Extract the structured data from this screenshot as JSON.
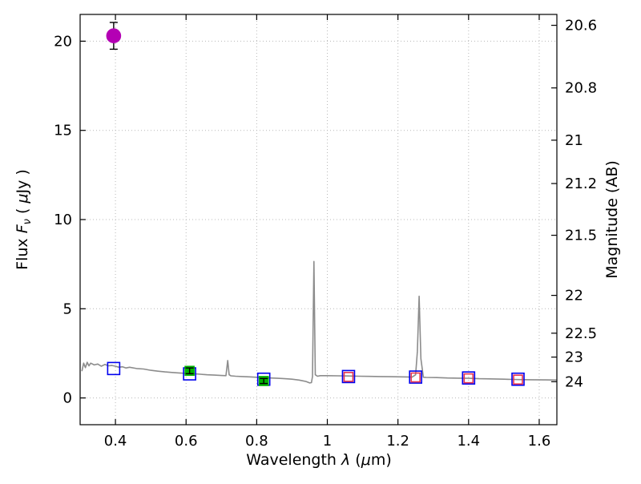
{
  "labels": {
    "x_prefix": "Wavelength  ",
    "x_lambda": "λ",
    "x_paren": " (",
    "x_mu": "μ",
    "x_suffix": "m)",
    "l_prefix": "Flux  ",
    "l_F": "F",
    "l_nu": "ν",
    "l_open": "  ( ",
    "l_mu": "μ",
    "l_end": "Jy )",
    "right_label": "Magnitude (AB)"
  },
  "chart_data": {
    "type": "line+scatter",
    "title": "",
    "xlabel": "Wavelength λ (μm)",
    "ylabel_left": "Flux Fν ( μJy )",
    "ylabel_right": "Magnitude (AB)",
    "grid": true,
    "grid_color": "#b8b8b8",
    "frame_color": "#000000",
    "xlim": [
      0.3,
      1.65
    ],
    "ylim": [
      -1.5,
      21.5
    ],
    "x_ticks": [
      0.4,
      0.6,
      0.8,
      1.0,
      1.2,
      1.4,
      1.6
    ],
    "x_tick_labels": [
      "0.4",
      "0.6",
      "0.8",
      "1",
      "1.2",
      "1.4",
      "1.6"
    ],
    "y_ticks": [
      0,
      5,
      10,
      15,
      20
    ],
    "y_tick_labels": [
      "0",
      "5",
      "10",
      "15",
      "20"
    ],
    "right_axis": {
      "label": "Magnitude (AB)",
      "ticks": [
        {
          "label": "20.6",
          "flux": 20.89
        },
        {
          "label": "20.8",
          "flux": 17.38
        },
        {
          "label": "21",
          "flux": 14.45
        },
        {
          "label": "21.2",
          "flux": 12.02
        },
        {
          "label": "21.5",
          "flux": 9.12
        },
        {
          "label": "22",
          "flux": 5.75
        },
        {
          "label": "22.5",
          "flux": 3.63
        },
        {
          "label": "23",
          "flux": 2.29
        },
        {
          "label": "24",
          "flux": 0.91
        }
      ]
    },
    "spectrum": {
      "name": "model-spectrum",
      "color": "#8c8c8c",
      "width": 1.6,
      "x": [
        0.305,
        0.31,
        0.315,
        0.32,
        0.325,
        0.33,
        0.34,
        0.35,
        0.36,
        0.37,
        0.38,
        0.39,
        0.4,
        0.41,
        0.42,
        0.43,
        0.44,
        0.46,
        0.48,
        0.5,
        0.52,
        0.54,
        0.56,
        0.58,
        0.6,
        0.62,
        0.64,
        0.66,
        0.68,
        0.7,
        0.713,
        0.718,
        0.722,
        0.727,
        0.74,
        0.76,
        0.78,
        0.8,
        0.82,
        0.84,
        0.86,
        0.88,
        0.9,
        0.92,
        0.94,
        0.95,
        0.955,
        0.958,
        0.962,
        0.966,
        0.972,
        0.98,
        1.0,
        1.03,
        1.06,
        1.09,
        1.12,
        1.15,
        1.18,
        1.21,
        1.24,
        1.25,
        1.255,
        1.26,
        1.265,
        1.272,
        1.28,
        1.31,
        1.34,
        1.37,
        1.4,
        1.43,
        1.46,
        1.5,
        1.54,
        1.58,
        1.62,
        1.65
      ],
      "y": [
        1.5,
        1.95,
        1.7,
        2.0,
        1.8,
        1.95,
        1.85,
        1.9,
        1.78,
        1.88,
        1.8,
        1.82,
        1.78,
        1.72,
        1.75,
        1.68,
        1.72,
        1.65,
        1.62,
        1.55,
        1.5,
        1.46,
        1.43,
        1.4,
        1.38,
        1.36,
        1.33,
        1.3,
        1.28,
        1.26,
        1.25,
        2.1,
        1.3,
        1.24,
        1.22,
        1.2,
        1.18,
        1.16,
        1.14,
        1.12,
        1.1,
        1.08,
        1.05,
        1.0,
        0.92,
        0.84,
        0.86,
        1.2,
        7.65,
        1.3,
        1.22,
        1.25,
        1.25,
        1.24,
        1.23,
        1.22,
        1.21,
        1.2,
        1.19,
        1.18,
        1.17,
        1.3,
        2.6,
        5.7,
        2.2,
        1.16,
        1.15,
        1.14,
        1.12,
        1.11,
        1.1,
        1.08,
        1.07,
        1.05,
        1.03,
        1.02,
        1.01,
        1.0
      ]
    },
    "series": [
      {
        "name": "blue-open-squares",
        "marker": "square",
        "filled": false,
        "color": "#0000ee",
        "size": 15,
        "points": [
          {
            "x": 0.395,
            "y": 1.65
          },
          {
            "x": 0.61,
            "y": 1.35
          },
          {
            "x": 0.82,
            "y": 1.05
          },
          {
            "x": 1.06,
            "y": 1.2
          },
          {
            "x": 1.25,
            "y": 1.17
          },
          {
            "x": 1.4,
            "y": 1.12
          },
          {
            "x": 1.54,
            "y": 1.05
          }
        ]
      },
      {
        "name": "red-open-squares",
        "marker": "square",
        "filled": false,
        "color": "#e8344e",
        "size": 11,
        "points": [
          {
            "x": 1.06,
            "y": 1.18
          },
          {
            "x": 1.25,
            "y": 1.15
          },
          {
            "x": 1.4,
            "y": 1.1
          },
          {
            "x": 1.54,
            "y": 1.03
          }
        ]
      },
      {
        "name": "green-filled-squares",
        "marker": "square",
        "filled": true,
        "color": "#00b300",
        "size": 11,
        "errorbar_color": "#000000",
        "errorbar_on_top": true,
        "points": [
          {
            "x": 0.61,
            "y": 1.52,
            "yerr": 0.16
          },
          {
            "x": 0.82,
            "y": 0.95,
            "yerr": 0.14
          }
        ]
      },
      {
        "name": "magenta-filled-circle",
        "marker": "circle",
        "filled": true,
        "color": "#b400b4",
        "size": 17,
        "errorbar_color": "#000000",
        "errorbar_on_top": false,
        "points": [
          {
            "x": 0.395,
            "y": 20.3,
            "yerr": 0.75
          }
        ]
      }
    ]
  }
}
